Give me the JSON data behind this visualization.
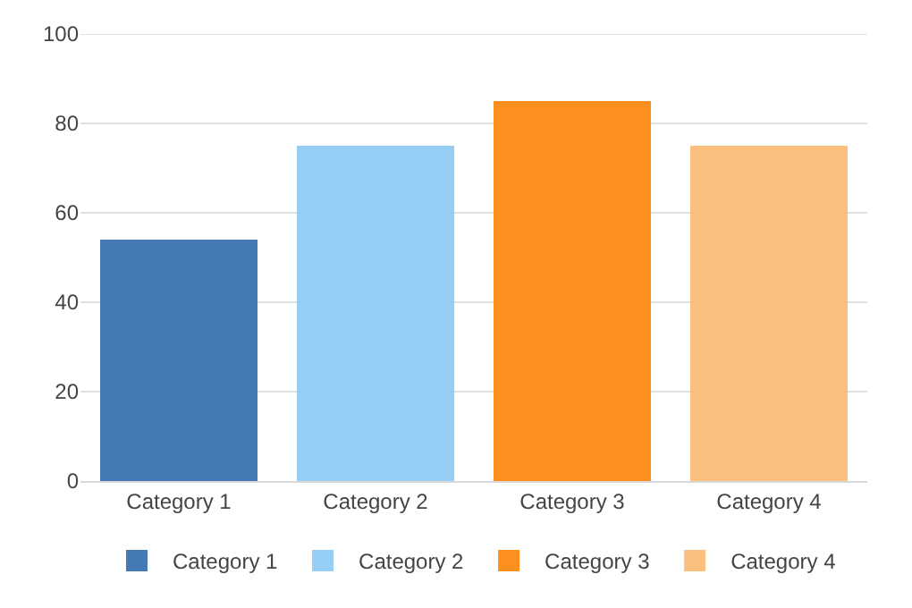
{
  "chart_data": {
    "type": "bar",
    "categories": [
      "Category 1",
      "Category 2",
      "Category 3",
      "Category 4"
    ],
    "series": [
      {
        "name": "Category 1",
        "color": "#4479b5",
        "values": [
          54,
          null,
          null,
          null
        ]
      },
      {
        "name": "Category 2",
        "color": "#97cef5",
        "values": [
          null,
          75,
          null,
          null
        ]
      },
      {
        "name": "Category 3",
        "color": "#fd8f1e",
        "values": [
          null,
          null,
          85,
          null
        ]
      },
      {
        "name": "Category 4",
        "color": "#fbbf7e",
        "values": [
          null,
          null,
          null,
          75
        ]
      }
    ],
    "ylim": [
      0,
      100
    ],
    "yticks": [
      0,
      20,
      40,
      60,
      80,
      100
    ],
    "grid": "y",
    "legend": "bottom"
  }
}
